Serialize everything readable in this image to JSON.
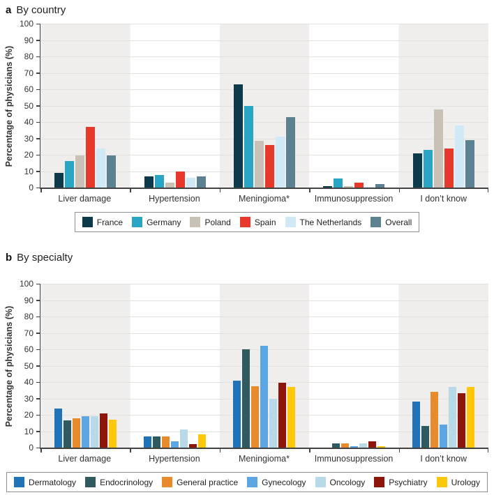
{
  "chart_data": [
    {
      "type": "bar",
      "panel": "a",
      "letter": "a",
      "title": "By country",
      "ylabel": "Percentage of physicians (%)",
      "ylim": [
        0,
        100
      ],
      "ytick_step": 10,
      "grid": true,
      "legend_position": "bottom",
      "categories": [
        "Liver damage",
        "Hypertension",
        "Meningioma*",
        "Immunosuppression",
        "I don’t know"
      ],
      "series": [
        {
          "name": "France",
          "color": "#0d3a4a",
          "values": [
            9,
            7,
            63,
            1,
            21
          ]
        },
        {
          "name": "Germany",
          "color": "#2aa6c4",
          "values": [
            16,
            7.5,
            50,
            5.5,
            23
          ]
        },
        {
          "name": "Poland",
          "color": "#c9c0b6",
          "values": [
            19.5,
            3,
            28.5,
            1,
            47.5
          ]
        },
        {
          "name": "Spain",
          "color": "#e6392b",
          "values": [
            37,
            10,
            26,
            3,
            24
          ]
        },
        {
          "name": "The Netherlands",
          "color": "#cfe9f6",
          "values": [
            24,
            6,
            31,
            0.5,
            38
          ]
        },
        {
          "name": "Overall",
          "color": "#5c8191",
          "values": [
            19.5,
            7,
            43,
            2,
            29
          ]
        }
      ]
    },
    {
      "type": "bar",
      "panel": "b",
      "letter": "b",
      "title": "By specialty",
      "ylabel": "Percentage of physicians (%)",
      "ylim": [
        0,
        100
      ],
      "ytick_step": 10,
      "grid": true,
      "legend_position": "bottom",
      "categories": [
        "Liver damage",
        "Hypertension",
        "Meningioma*",
        "Immunosuppression",
        "I don’t know"
      ],
      "series": [
        {
          "name": "Dermatology",
          "color": "#2173b8",
          "values": [
            24,
            7,
            41,
            0,
            28
          ]
        },
        {
          "name": "Endocrinology",
          "color": "#2e5a60",
          "values": [
            16.5,
            7,
            60,
            2.5,
            13
          ]
        },
        {
          "name": "General practice",
          "color": "#e88b2d",
          "values": [
            18,
            7,
            37.5,
            2.5,
            34
          ]
        },
        {
          "name": "Gynecology",
          "color": "#5ca7e3",
          "values": [
            19,
            4,
            62,
            1,
            14
          ]
        },
        {
          "name": "Oncology",
          "color": "#b7d9e8",
          "values": [
            19,
            11,
            30,
            2.5,
            37
          ]
        },
        {
          "name": "Psychiatry",
          "color": "#8e150a",
          "values": [
            21,
            2,
            39.5,
            4,
            33
          ]
        },
        {
          "name": "Urology",
          "color": "#fec70a",
          "values": [
            17,
            8,
            37,
            1,
            37
          ]
        }
      ]
    }
  ],
  "colors": {
    "axis": "#424242",
    "grid": "#e3e1de",
    "stripe": "#efeeec",
    "text": "#333333"
  }
}
